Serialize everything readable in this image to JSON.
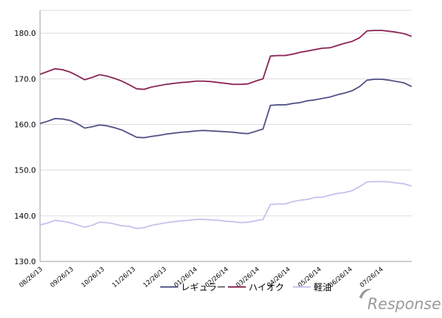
{
  "chart_data": {
    "type": "line",
    "title": "",
    "xlabel": "",
    "ylabel": "",
    "ylim": [
      130,
      185
    ],
    "yticks": [
      "130.0",
      "140.0",
      "150.0",
      "160.0",
      "170.0",
      "180.0"
    ],
    "xticks": [
      "08/26/13",
      "09/26/13",
      "10/26/13",
      "11/26/13",
      "12/26/13",
      "01/26/14",
      "02/26/14",
      "03/26/14",
      "04/26/14",
      "05/26/14",
      "06/26/14",
      "07/26/14"
    ],
    "grid": true,
    "legend_position": "bottom",
    "n_points": 51,
    "series": [
      {
        "name": "レギュラー",
        "color": "#55558a",
        "values": [
          160.2,
          160.7,
          161.3,
          161.2,
          160.9,
          160.2,
          159.2,
          159.5,
          159.9,
          159.7,
          159.3,
          158.8,
          158.0,
          157.2,
          157.1,
          157.4,
          157.6,
          157.9,
          158.1,
          158.3,
          158.4,
          158.6,
          158.7,
          158.6,
          158.5,
          158.4,
          158.3,
          158.1,
          158.0,
          158.5,
          159.0,
          164.2,
          164.3,
          164.3,
          164.6,
          164.8,
          165.2,
          165.4,
          165.7,
          166.0,
          166.5,
          166.9,
          167.4,
          168.3,
          169.7,
          169.9,
          169.9,
          169.7,
          169.4,
          169.1,
          168.3
        ]
      },
      {
        "name": "ハイオク",
        "color": "#8c2a5a",
        "values": [
          171.0,
          171.6,
          172.2,
          172.0,
          171.5,
          170.7,
          169.8,
          170.3,
          170.9,
          170.6,
          170.1,
          169.5,
          168.7,
          167.8,
          167.7,
          168.2,
          168.5,
          168.8,
          169.0,
          169.2,
          169.3,
          169.5,
          169.5,
          169.4,
          169.2,
          169.0,
          168.8,
          168.8,
          168.9,
          169.5,
          170.0,
          175.0,
          175.1,
          175.1,
          175.4,
          175.8,
          176.1,
          176.4,
          176.7,
          176.8,
          177.3,
          177.8,
          178.2,
          179.0,
          180.5,
          180.6,
          180.6,
          180.4,
          180.2,
          179.9,
          179.3
        ]
      },
      {
        "name": "軽油",
        "color": "#c4c4ee",
        "values": [
          138.0,
          138.4,
          139.0,
          138.8,
          138.5,
          138.0,
          137.5,
          137.9,
          138.6,
          138.5,
          138.2,
          137.8,
          137.7,
          137.2,
          137.4,
          137.9,
          138.2,
          138.5,
          138.7,
          138.9,
          139.0,
          139.2,
          139.2,
          139.1,
          139.0,
          138.8,
          138.7,
          138.5,
          138.6,
          138.9,
          139.2,
          142.5,
          142.6,
          142.6,
          143.1,
          143.4,
          143.6,
          144.0,
          144.1,
          144.5,
          144.9,
          145.1,
          145.5,
          146.4,
          147.4,
          147.5,
          147.5,
          147.4,
          147.2,
          147.0,
          146.5
        ]
      }
    ]
  },
  "watermark": {
    "text": "Response."
  }
}
